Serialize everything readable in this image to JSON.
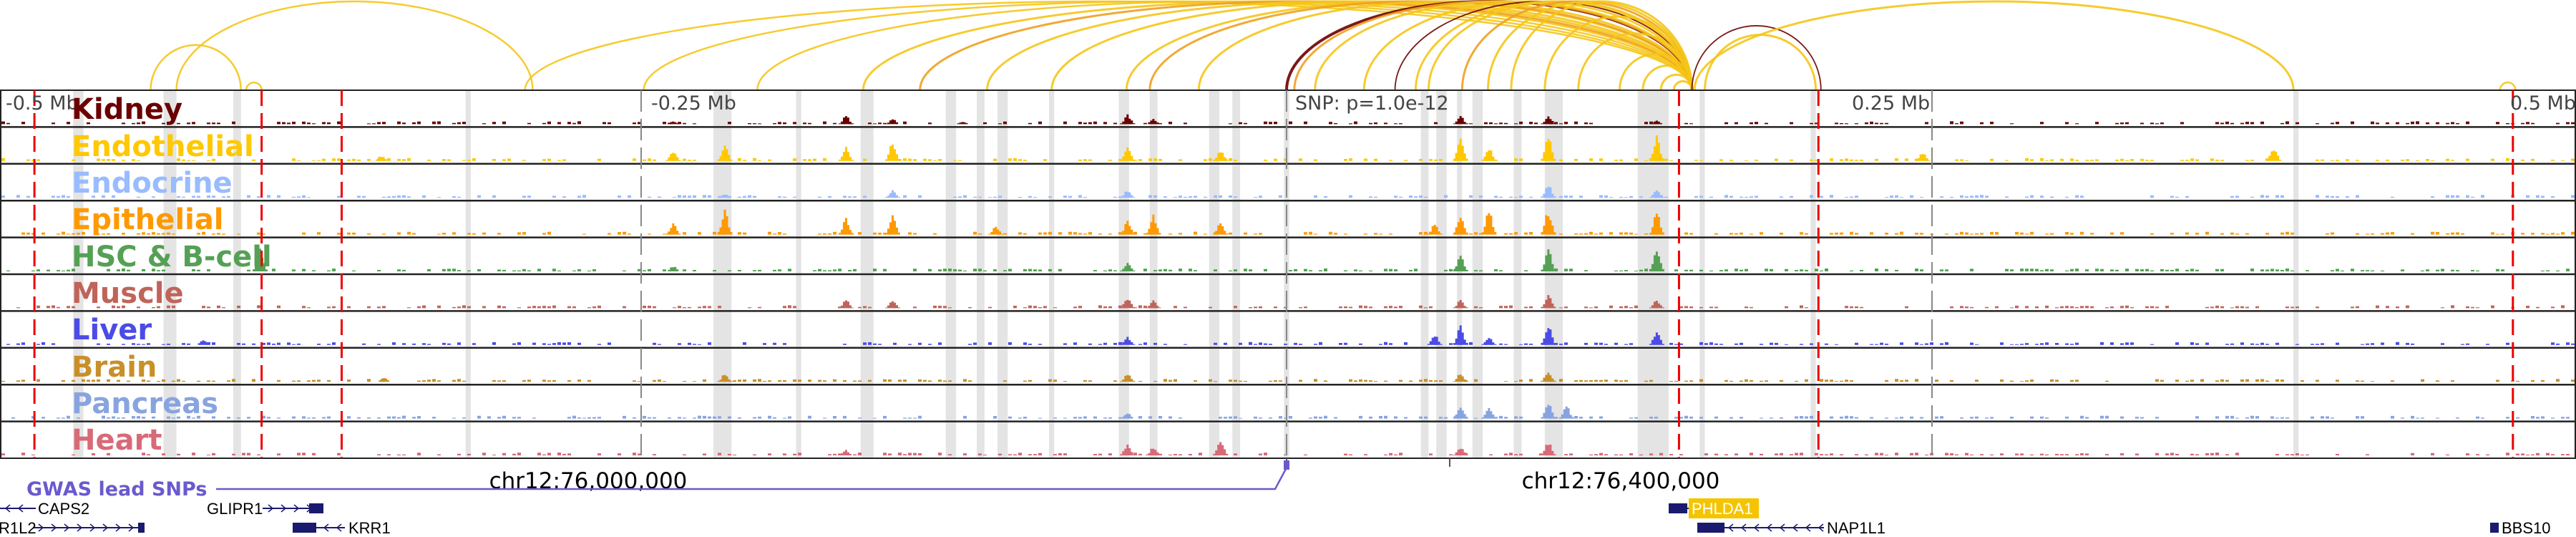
{
  "axis": {
    "labels": [
      "-0.5 Mb",
      "-0.25 Mb",
      "SNP: p=1.0e-12",
      "0.25 Mb",
      "0.5 Mb"
    ],
    "snp_kb": 0
  },
  "coordinates": [
    "chr12:76,000,000",
    "chr12:76,400,000"
  ],
  "gwas_label": "GWAS lead SNPs",
  "genes": {
    "caps2": "CAPS2",
    "glipr1": "GLIPR1",
    "phlda1": "PHLDA1",
    "r1l2": "R1L2",
    "krr1": "KRR1",
    "nap1l1": "NAP1L1",
    "bbs10": "BBS10"
  },
  "colors": {
    "arc_main": "#f5c518",
    "arc_orange": "#f0a020",
    "arc_dark": "#6b0000",
    "highlight": "#e4e4e4",
    "dashed": "#ee0000",
    "gene": "#1a1a6e",
    "phlda1_bg": "#f5c400",
    "gwas": "#6a5acd"
  },
  "tracks": [
    {
      "name": "Kidney",
      "color": "#6b0000",
      "peaks": [
        [
          -171,
          0.3
        ],
        [
          -153,
          0.2
        ],
        [
          -62,
          0.35
        ],
        [
          -52,
          0.2
        ],
        [
          67,
          0.3
        ],
        [
          101,
          0.3
        ],
        [
          143,
          0.15
        ],
        [
          -238,
          0.1
        ],
        [
          -126,
          0.1
        ]
      ]
    },
    {
      "name": "Endothelial",
      "color": "#ffc800",
      "peaks": [
        [
          -238,
          0.4
        ],
        [
          -218,
          0.6
        ],
        [
          -171,
          0.5
        ],
        [
          -153,
          0.7
        ],
        [
          -62,
          0.5
        ],
        [
          -26,
          0.4
        ],
        [
          67,
          0.8
        ],
        [
          78,
          0.5
        ],
        [
          101,
          0.9
        ],
        [
          143,
          0.9
        ],
        [
          246,
          0.3
        ],
        [
          382,
          0.5
        ],
        [
          -351,
          0.2
        ]
      ]
    },
    {
      "name": "Endocrine",
      "color": "#99bbff",
      "peaks": [
        [
          -153,
          0.3
        ],
        [
          -62,
          0.3
        ],
        [
          101,
          0.5
        ],
        [
          143,
          0.3
        ],
        [
          -218,
          0.15
        ]
      ]
    },
    {
      "name": "Epithelial",
      "color": "#ff9900",
      "peaks": [
        [
          -238,
          0.4
        ],
        [
          -218,
          0.9
        ],
        [
          -171,
          0.6
        ],
        [
          -153,
          0.7
        ],
        [
          -62,
          0.5
        ],
        [
          -52,
          0.7
        ],
        [
          -26,
          0.5
        ],
        [
          57,
          0.4
        ],
        [
          67,
          0.7
        ],
        [
          78,
          0.9
        ],
        [
          101,
          0.9
        ],
        [
          143,
          0.8
        ],
        [
          -113,
          0.3
        ]
      ]
    },
    {
      "name": "HSC & B-cell",
      "color": "#55a055",
      "peaks": [
        [
          -398,
          0.8
        ],
        [
          -238,
          0.2
        ],
        [
          -62,
          0.3
        ],
        [
          67,
          0.6
        ],
        [
          101,
          0.8
        ],
        [
          143,
          0.8
        ]
      ]
    },
    {
      "name": "Muscle",
      "color": "#c0645a",
      "peaks": [
        [
          -171,
          0.3
        ],
        [
          -153,
          0.3
        ],
        [
          -62,
          0.4
        ],
        [
          -52,
          0.3
        ],
        [
          67,
          0.3
        ],
        [
          101,
          0.5
        ],
        [
          143,
          0.3
        ]
      ]
    },
    {
      "name": "Liver",
      "color": "#4b4be6",
      "peaks": [
        [
          -62,
          0.3
        ],
        [
          57,
          0.4
        ],
        [
          67,
          0.7
        ],
        [
          78,
          0.3
        ],
        [
          101,
          0.8
        ],
        [
          143,
          0.5
        ],
        [
          -420,
          0.2
        ]
      ]
    },
    {
      "name": "Brain",
      "color": "#c8902a",
      "peaks": [
        [
          -218,
          0.3
        ],
        [
          -62,
          0.3
        ],
        [
          67,
          0.3
        ],
        [
          101,
          0.4
        ],
        [
          -350,
          0.15
        ]
      ]
    },
    {
      "name": "Pancreas",
      "color": "#88a4e0",
      "peaks": [
        [
          67,
          0.5
        ],
        [
          78,
          0.4
        ],
        [
          101,
          0.6
        ],
        [
          108,
          0.5
        ],
        [
          -62,
          0.2
        ]
      ]
    },
    {
      "name": "Heart",
      "color": "#d86a78",
      "peaks": [
        [
          -62,
          0.4
        ],
        [
          -52,
          0.3
        ],
        [
          -26,
          0.6
        ],
        [
          67,
          0.3
        ],
        [
          101,
          0.5
        ],
        [
          -171,
          0.2
        ]
      ]
    }
  ],
  "highlight_regions_kb": [
    [
      -470,
      -466
    ],
    [
      -435,
      -430
    ],
    [
      -408,
      -405
    ],
    [
      -318,
      -316
    ],
    [
      -222,
      -215
    ],
    [
      -190,
      -188
    ],
    [
      -165,
      -160
    ],
    [
      -132,
      -128
    ],
    [
      -120,
      -117
    ],
    [
      -112,
      -108
    ],
    [
      -92,
      -90
    ],
    [
      -65,
      -61
    ],
    [
      -53,
      -50
    ],
    [
      -30,
      -26
    ],
    [
      -21,
      -18
    ],
    [
      -1,
      1
    ],
    [
      52,
      55
    ],
    [
      58,
      62
    ],
    [
      66,
      68
    ],
    [
      72,
      76
    ],
    [
      88,
      91
    ],
    [
      100,
      107
    ],
    [
      136,
      148
    ],
    [
      160,
      162
    ],
    [
      203,
      205
    ],
    [
      390,
      392
    ]
  ],
  "dashed_lines_kb": [
    -485,
    -397,
    -366,
    152,
    206,
    475
  ],
  "gray_ticks_kb": [
    -250,
    0,
    250
  ],
  "arcs": [
    [
      -440,
      -405,
      "main"
    ],
    [
      -403,
      -397,
      "main"
    ],
    [
      -430,
      -292,
      "main"
    ],
    [
      -295,
      157,
      "main"
    ],
    [
      -249,
      157,
      "main"
    ],
    [
      -205,
      157,
      "main"
    ],
    [
      -164,
      157,
      "main"
    ],
    [
      -142,
      157,
      "orange"
    ],
    [
      -116,
      157,
      "main"
    ],
    [
      -91,
      157,
      "main"
    ],
    [
      -62,
      157,
      "main"
    ],
    [
      -53,
      157,
      "orange"
    ],
    [
      -34,
      157,
      "main"
    ],
    [
      0,
      157,
      "dark"
    ],
    [
      3,
      157,
      "orange"
    ],
    [
      11,
      157,
      "main"
    ],
    [
      30,
      157,
      "main"
    ],
    [
      42,
      157,
      "dark"
    ],
    [
      50,
      157,
      "main"
    ],
    [
      55,
      157,
      "main"
    ],
    [
      68,
      157,
      "orange"
    ],
    [
      78,
      157,
      "main"
    ],
    [
      87,
      157,
      "main"
    ],
    [
      100,
      157,
      "main"
    ],
    [
      113,
      157,
      "main"
    ],
    [
      129,
      157,
      "main"
    ],
    [
      138,
      157,
      "main"
    ],
    [
      145,
      157,
      "main"
    ],
    [
      150,
      157,
      "main"
    ],
    [
      157,
      207,
      "dark"
    ],
    [
      162,
      205,
      "main"
    ],
    [
      158,
      390,
      "main"
    ],
    [
      470,
      476,
      "main"
    ]
  ]
}
